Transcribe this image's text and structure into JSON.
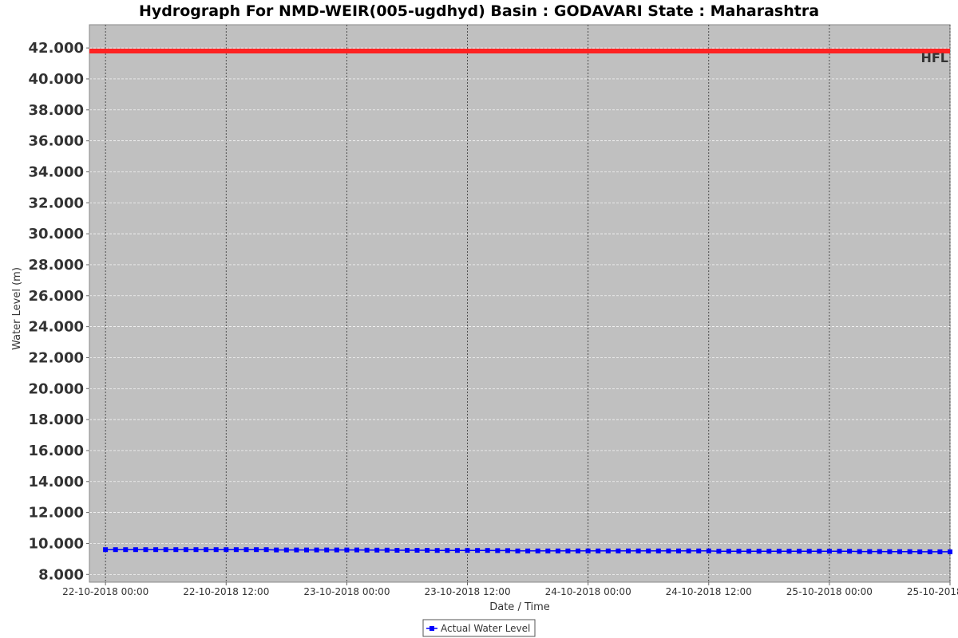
{
  "chart_data": {
    "type": "line",
    "title": "Hydrograph For NMD-WEIR(005-ugdhyd) Basin : GODAVARI State : Maharashtra",
    "xlabel": "Date / Time",
    "ylabel": "Water Level (m)",
    "ylim": [
      7.5,
      43.5
    ],
    "xlim": [
      "2018-10-21T22:24",
      "2018-10-25T12:00"
    ],
    "yticks": [
      "8.000",
      "10.000",
      "12.000",
      "14.000",
      "16.000",
      "18.000",
      "20.000",
      "22.000",
      "24.000",
      "26.000",
      "28.000",
      "30.000",
      "32.000",
      "34.000",
      "36.000",
      "38.000",
      "40.000",
      "42.000"
    ],
    "xticks": [
      {
        "t": "2018-10-22T00:00",
        "label": "22-10-2018 00:00"
      },
      {
        "t": "2018-10-22T12:00",
        "label": "22-10-2018 12:00"
      },
      {
        "t": "2018-10-23T00:00",
        "label": "23-10-2018 00:00"
      },
      {
        "t": "2018-10-23T12:00",
        "label": "23-10-2018 12:00"
      },
      {
        "t": "2018-10-24T00:00",
        "label": "24-10-2018 00:00"
      },
      {
        "t": "2018-10-24T12:00",
        "label": "24-10-2018 12:00"
      },
      {
        "t": "2018-10-25T00:00",
        "label": "25-10-2018 00:00"
      },
      {
        "t": "2018-10-25T12:00",
        "label": "25-10-2018 12:00"
      }
    ],
    "hfl": {
      "label": "HFL",
      "value": 41.8,
      "color": "#ff2222"
    },
    "grid": true,
    "legend_position": "bottom-center",
    "series": [
      {
        "name": "Actual Water Level",
        "color": "#0000ff",
        "marker": "square",
        "start": "2018-10-22T00:00",
        "interval_hours": 1,
        "values": [
          9.6,
          9.6,
          9.6,
          9.6,
          9.6,
          9.6,
          9.6,
          9.6,
          9.6,
          9.6,
          9.6,
          9.6,
          9.6,
          9.6,
          9.6,
          9.6,
          9.6,
          9.58,
          9.58,
          9.58,
          9.58,
          9.58,
          9.58,
          9.58,
          9.58,
          9.58,
          9.57,
          9.57,
          9.57,
          9.56,
          9.56,
          9.56,
          9.56,
          9.55,
          9.55,
          9.55,
          9.55,
          9.55,
          9.55,
          9.54,
          9.54,
          9.52,
          9.52,
          9.52,
          9.52,
          9.52,
          9.52,
          9.52,
          9.52,
          9.52,
          9.52,
          9.52,
          9.52,
          9.52,
          9.52,
          9.52,
          9.52,
          9.52,
          9.52,
          9.52,
          9.52,
          9.5,
          9.5,
          9.5,
          9.5,
          9.5,
          9.5,
          9.5,
          9.5,
          9.5,
          9.5,
          9.5,
          9.5,
          9.5,
          9.5,
          9.48,
          9.48,
          9.48,
          9.47,
          9.47,
          9.47,
          9.46,
          9.46,
          9.46,
          9.46
        ]
      }
    ]
  }
}
